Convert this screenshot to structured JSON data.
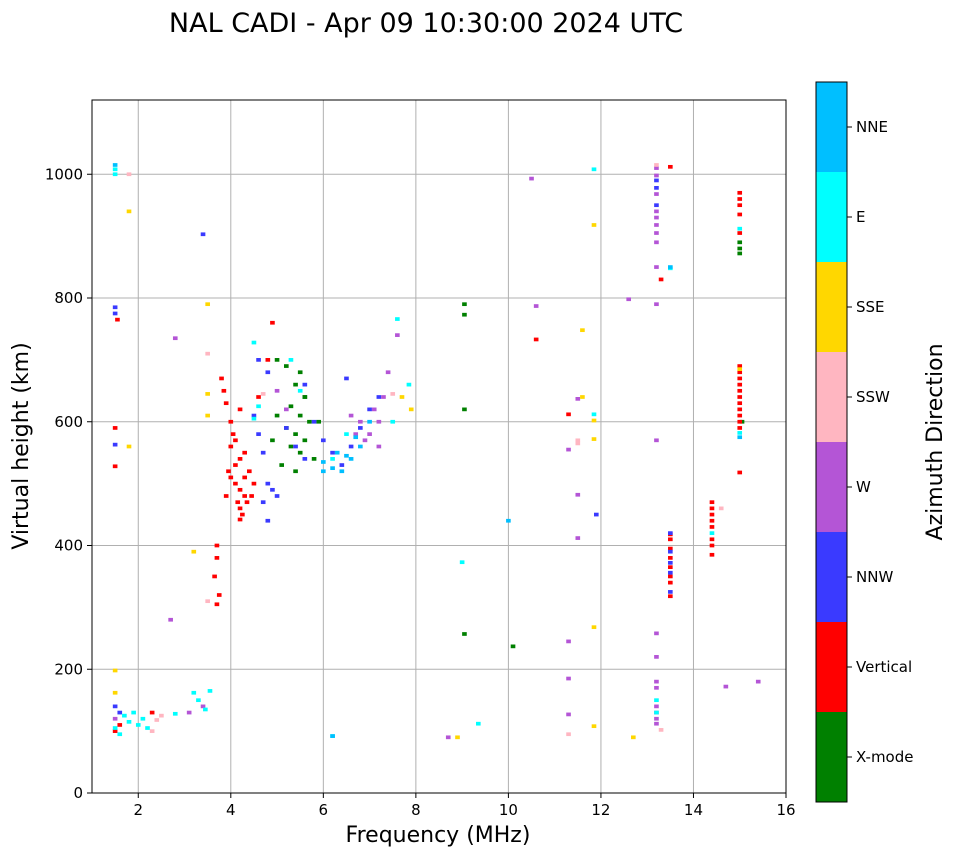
{
  "chart_data": {
    "type": "scatter",
    "title": "NAL CADI - Apr 09 10:30:00 2024 UTC",
    "xlabel": "Frequency (MHz)",
    "ylabel": "Virtual height (km)",
    "xlim": [
      1,
      16
    ],
    "ylim": [
      0,
      1120
    ],
    "xticks": [
      2,
      4,
      6,
      8,
      10,
      12,
      14,
      16
    ],
    "yticks": [
      0,
      200,
      400,
      600,
      800,
      1000
    ],
    "grid": true,
    "colorbar": {
      "label": "Azimuth Direction",
      "categories": [
        {
          "name": "X-mode",
          "color": "#008000"
        },
        {
          "name": "Vertical",
          "color": "#ff0000"
        },
        {
          "name": "NNW",
          "color": "#3a3aff"
        },
        {
          "name": "W",
          "color": "#b455d6"
        },
        {
          "name": "SSW",
          "color": "#ffb6c1"
        },
        {
          "name": "SSE",
          "color": "#ffd700"
        },
        {
          "name": "E",
          "color": "#00ffff"
        },
        {
          "name": "NNE",
          "color": "#00bfff"
        }
      ]
    },
    "bin_size": {
      "df": 0.1,
      "dh": 6
    },
    "series": [
      {
        "name": "X-mode",
        "points": [
          [
            9.05,
            790
          ],
          [
            9.05,
            773
          ],
          [
            9.05,
            620
          ],
          [
            9.05,
            257
          ],
          [
            10.1,
            237
          ],
          [
            5.0,
            700
          ],
          [
            5.2,
            690
          ],
          [
            5.5,
            680
          ],
          [
            5.4,
            660
          ],
          [
            5.6,
            640
          ],
          [
            5.3,
            625
          ],
          [
            5.5,
            610
          ],
          [
            5.7,
            600
          ],
          [
            5.2,
            590
          ],
          [
            5.4,
            580
          ],
          [
            5.6,
            570
          ],
          [
            5.3,
            560
          ],
          [
            5.5,
            550
          ],
          [
            5.8,
            540
          ],
          [
            5.1,
            530
          ],
          [
            5.4,
            520
          ],
          [
            5.6,
            640
          ],
          [
            5.9,
            600
          ],
          [
            5.0,
            610
          ],
          [
            4.9,
            570
          ],
          [
            15.0,
            890
          ],
          [
            15.0,
            880
          ],
          [
            15.0,
            872
          ],
          [
            15.05,
            600
          ]
        ]
      },
      {
        "name": "Vertical",
        "points": [
          [
            1.5,
            590
          ],
          [
            1.5,
            528
          ],
          [
            1.55,
            765
          ],
          [
            1.5,
            100
          ],
          [
            1.6,
            110
          ],
          [
            2.3,
            130
          ],
          [
            3.8,
            670
          ],
          [
            3.85,
            650
          ],
          [
            3.9,
            630
          ],
          [
            3.75,
            320
          ],
          [
            3.7,
            305
          ],
          [
            3.65,
            350
          ],
          [
            3.7,
            380
          ],
          [
            3.7,
            400
          ],
          [
            4.0,
            600
          ],
          [
            4.1,
            570
          ],
          [
            4.2,
            540
          ],
          [
            4.3,
            510
          ],
          [
            4.1,
            500
          ],
          [
            4.2,
            490
          ],
          [
            4.3,
            480
          ],
          [
            4.15,
            470
          ],
          [
            4.2,
            460
          ],
          [
            4.25,
            450
          ],
          [
            4.2,
            442
          ],
          [
            4.4,
            520
          ],
          [
            4.5,
            500
          ],
          [
            4.0,
            510
          ],
          [
            3.9,
            480
          ],
          [
            3.95,
            520
          ],
          [
            4.35,
            470
          ],
          [
            4.45,
            480
          ],
          [
            4.1,
            530
          ],
          [
            4.3,
            550
          ],
          [
            4.0,
            560
          ],
          [
            4.05,
            580
          ],
          [
            4.2,
            620
          ],
          [
            4.6,
            640
          ],
          [
            4.9,
            760
          ],
          [
            4.8,
            700
          ],
          [
            10.6,
            733
          ],
          [
            11.3,
            612
          ],
          [
            13.5,
            1012
          ],
          [
            13.3,
            830
          ],
          [
            15.0,
            970
          ],
          [
            15.0,
            960
          ],
          [
            15.0,
            950
          ],
          [
            15.0,
            935
          ],
          [
            15.0,
            905
          ],
          [
            15.0,
            690
          ],
          [
            15.0,
            680
          ],
          [
            15.0,
            670
          ],
          [
            15.0,
            660
          ],
          [
            15.0,
            650
          ],
          [
            15.0,
            640
          ],
          [
            15.0,
            630
          ],
          [
            15.0,
            620
          ],
          [
            15.0,
            610
          ],
          [
            15.0,
            600
          ],
          [
            15.0,
            590
          ],
          [
            15.0,
            518
          ],
          [
            14.4,
            470
          ],
          [
            14.4,
            460
          ],
          [
            14.4,
            450
          ],
          [
            14.4,
            440
          ],
          [
            14.4,
            430
          ],
          [
            14.4,
            410
          ],
          [
            14.4,
            400
          ],
          [
            14.4,
            385
          ],
          [
            13.5,
            418
          ],
          [
            13.5,
            410
          ],
          [
            13.5,
            395
          ],
          [
            13.5,
            380
          ],
          [
            13.5,
            365
          ],
          [
            13.5,
            350
          ],
          [
            13.5,
            340
          ],
          [
            13.5,
            318
          ]
        ]
      },
      {
        "name": "NNW",
        "points": [
          [
            1.5,
            785
          ],
          [
            1.5,
            775
          ],
          [
            1.5,
            563
          ],
          [
            1.5,
            140
          ],
          [
            1.6,
            130
          ],
          [
            3.4,
            903
          ],
          [
            4.5,
            610
          ],
          [
            4.6,
            580
          ],
          [
            4.7,
            550
          ],
          [
            4.8,
            500
          ],
          [
            4.9,
            490
          ],
          [
            4.8,
            440
          ],
          [
            4.7,
            470
          ],
          [
            5.0,
            480
          ],
          [
            5.2,
            590
          ],
          [
            5.4,
            560
          ],
          [
            5.6,
            540
          ],
          [
            5.8,
            600
          ],
          [
            6.0,
            570
          ],
          [
            6.2,
            550
          ],
          [
            6.4,
            530
          ],
          [
            6.6,
            560
          ],
          [
            6.8,
            590
          ],
          [
            7.0,
            620
          ],
          [
            7.2,
            640
          ],
          [
            6.5,
            670
          ],
          [
            4.6,
            700
          ],
          [
            4.8,
            680
          ],
          [
            5.6,
            660
          ],
          [
            11.9,
            450
          ],
          [
            13.5,
            420
          ],
          [
            13.5,
            390
          ],
          [
            13.5,
            372
          ],
          [
            13.5,
            356
          ],
          [
            13.5,
            325
          ],
          [
            13.2,
            990
          ],
          [
            13.2,
            978
          ],
          [
            13.2,
            950
          ]
        ]
      },
      {
        "name": "W",
        "points": [
          [
            2.7,
            280
          ],
          [
            2.8,
            735
          ],
          [
            3.1,
            130
          ],
          [
            3.4,
            140
          ],
          [
            5.0,
            650
          ],
          [
            5.2,
            620
          ],
          [
            6.6,
            610
          ],
          [
            6.8,
            600
          ],
          [
            7.0,
            580
          ],
          [
            7.2,
            560
          ],
          [
            6.9,
            570
          ],
          [
            7.1,
            620
          ],
          [
            7.3,
            640
          ],
          [
            7.2,
            600
          ],
          [
            6.7,
            580
          ],
          [
            7.4,
            680
          ],
          [
            7.6,
            740
          ],
          [
            10.5,
            993
          ],
          [
            10.6,
            787
          ],
          [
            11.3,
            555
          ],
          [
            11.3,
            185
          ],
          [
            11.3,
            127
          ],
          [
            11.3,
            245
          ],
          [
            11.5,
            482
          ],
          [
            11.5,
            412
          ],
          [
            11.5,
            637
          ],
          [
            12.6,
            798
          ],
          [
            13.2,
            1010
          ],
          [
            13.2,
            998
          ],
          [
            13.2,
            968
          ],
          [
            13.2,
            940
          ],
          [
            13.2,
            930
          ],
          [
            13.2,
            918
          ],
          [
            13.2,
            905
          ],
          [
            13.2,
            890
          ],
          [
            13.2,
            850
          ],
          [
            13.2,
            790
          ],
          [
            13.2,
            570
          ],
          [
            13.2,
            258
          ],
          [
            13.2,
            220
          ],
          [
            13.2,
            180
          ],
          [
            13.2,
            170
          ],
          [
            13.2,
            140
          ],
          [
            13.2,
            130
          ],
          [
            13.2,
            120
          ],
          [
            13.2,
            112
          ],
          [
            14.7,
            172
          ],
          [
            15.4,
            180
          ],
          [
            8.7,
            90
          ],
          [
            1.5,
            120
          ]
        ]
      },
      {
        "name": "SSW",
        "points": [
          [
            1.8,
            1000
          ],
          [
            2.5,
            125
          ],
          [
            2.3,
            100
          ],
          [
            2.4,
            118
          ],
          [
            3.5,
            710
          ],
          [
            3.5,
            310
          ],
          [
            4.7,
            645
          ],
          [
            7.5,
            645
          ],
          [
            11.3,
            95
          ],
          [
            11.5,
            565
          ],
          [
            11.5,
            570
          ],
          [
            13.3,
            102
          ],
          [
            14.6,
            460
          ],
          [
            13.2,
            1015
          ]
        ]
      },
      {
        "name": "SSE",
        "points": [
          [
            1.8,
            940
          ],
          [
            1.8,
            560
          ],
          [
            1.5,
            198
          ],
          [
            1.5,
            162
          ],
          [
            3.2,
            390
          ],
          [
            3.5,
            790
          ],
          [
            3.5,
            645
          ],
          [
            3.5,
            610
          ],
          [
            7.7,
            640
          ],
          [
            7.9,
            620
          ],
          [
            8.9,
            90
          ],
          [
            11.6,
            748
          ],
          [
            11.6,
            640
          ],
          [
            11.85,
            918
          ],
          [
            11.85,
            602
          ],
          [
            11.85,
            572
          ],
          [
            11.85,
            268
          ],
          [
            11.85,
            108
          ],
          [
            12.7,
            90
          ],
          [
            15.0,
            685
          ]
        ]
      },
      {
        "name": "E",
        "points": [
          [
            1.5,
            1008
          ],
          [
            1.5,
            1000
          ],
          [
            1.5,
            105
          ],
          [
            1.6,
            95
          ],
          [
            1.7,
            125
          ],
          [
            1.8,
            115
          ],
          [
            1.9,
            130
          ],
          [
            2.0,
            110
          ],
          [
            2.1,
            120
          ],
          [
            2.2,
            105
          ],
          [
            2.8,
            128
          ],
          [
            3.2,
            162
          ],
          [
            3.3,
            150
          ],
          [
            3.55,
            165
          ],
          [
            3.45,
            135
          ],
          [
            4.5,
            728
          ],
          [
            4.5,
            605
          ],
          [
            4.6,
            625
          ],
          [
            5.3,
            700
          ],
          [
            5.5,
            650
          ],
          [
            6.5,
            580
          ],
          [
            6.2,
            540
          ],
          [
            7.5,
            600
          ],
          [
            7.6,
            766
          ],
          [
            7.85,
            660
          ],
          [
            6.2,
            92
          ],
          [
            9.35,
            112
          ],
          [
            9.0,
            373
          ],
          [
            11.85,
            1008
          ],
          [
            11.85,
            612
          ],
          [
            13.5,
            848
          ],
          [
            13.2,
            130
          ],
          [
            13.2,
            150
          ],
          [
            15.0,
            912
          ],
          [
            15.0,
            582
          ],
          [
            14.4,
            420
          ]
        ]
      },
      {
        "name": "NNE",
        "points": [
          [
            1.5,
            1015
          ],
          [
            6.0,
            535
          ],
          [
            6.2,
            525
          ],
          [
            6.4,
            520
          ],
          [
            6.6,
            540
          ],
          [
            6.8,
            560
          ],
          [
            6.3,
            550
          ],
          [
            6.5,
            545
          ],
          [
            6.0,
            520
          ],
          [
            6.7,
            575
          ],
          [
            7.0,
            600
          ],
          [
            10.0,
            440
          ],
          [
            13.5,
            850
          ],
          [
            15.0,
            575
          ],
          [
            6.2,
            92
          ]
        ]
      }
    ]
  }
}
